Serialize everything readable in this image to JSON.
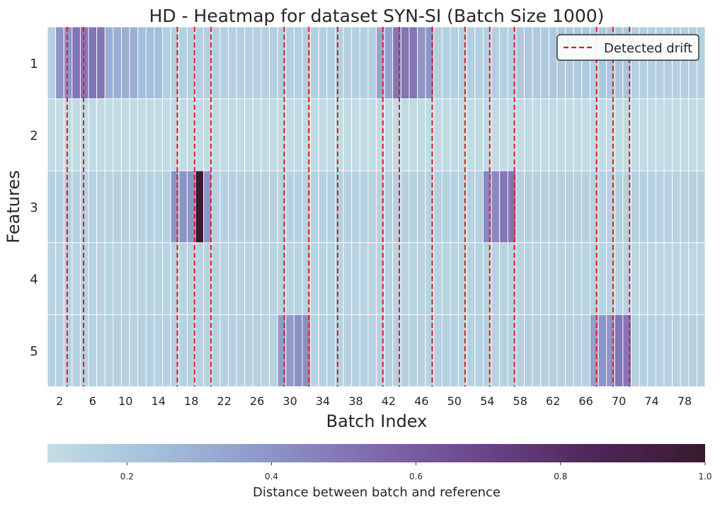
{
  "chart_data": {
    "type": "heatmap",
    "title": "HD - Heatmap for dataset SYN-SI (Batch Size 1000)",
    "xlabel": "Batch Index",
    "ylabel": "Features",
    "y_categories": [
      "1",
      "2",
      "3",
      "4",
      "5"
    ],
    "x_start": 1,
    "x_end": 80,
    "x_tick_labels": [
      "2",
      "6",
      "10",
      "14",
      "18",
      "22",
      "26",
      "30",
      "34",
      "38",
      "42",
      "46",
      "50",
      "54",
      "58",
      "62",
      "66",
      "70",
      "74",
      "78"
    ],
    "colorbar": {
      "label": "Distance between batch and reference",
      "min": 0.09,
      "max": 1.0,
      "ticks": [
        "0.2",
        "0.4",
        "0.6",
        "0.8",
        "1.0"
      ],
      "colors": [
        "#c2dde4",
        "#a3bfdb",
        "#8e96c9",
        "#7f69ac",
        "#6b4489",
        "#4e2659",
        "#3a1a30"
      ]
    },
    "baseline_values": [
      0.16,
      0.1,
      0.15,
      0.14,
      0.15
    ],
    "segments": [
      {
        "feature": "1",
        "from": 2,
        "to": 3,
        "value": 0.4
      },
      {
        "feature": "1",
        "from": 4,
        "to": 7,
        "value": 0.5
      },
      {
        "feature": "1",
        "from": 8,
        "to": 11,
        "value": 0.3
      },
      {
        "feature": "1",
        "from": 12,
        "to": 14,
        "value": 0.24
      },
      {
        "feature": "1",
        "from": 41,
        "to": 42,
        "value": 0.34
      },
      {
        "feature": "1",
        "from": 43,
        "to": 45,
        "value": 0.5
      },
      {
        "feature": "1",
        "from": 46,
        "to": 47,
        "value": 0.4
      },
      {
        "feature": "1",
        "from": 58,
        "to": 66,
        "value": 0.19
      },
      {
        "feature": "1",
        "from": 68,
        "to": 71,
        "value": 0.2
      },
      {
        "feature": "3",
        "from": 16,
        "to": 18,
        "value": 0.4
      },
      {
        "feature": "3",
        "from": 19,
        "to": 19,
        "value": 1.0
      },
      {
        "feature": "3",
        "from": 20,
        "to": 20,
        "value": 0.4
      },
      {
        "feature": "3",
        "from": 54,
        "to": 55,
        "value": 0.44
      },
      {
        "feature": "3",
        "from": 56,
        "to": 57,
        "value": 0.5
      },
      {
        "feature": "4",
        "from": 72,
        "to": 80,
        "value": 0.12
      },
      {
        "feature": "5",
        "from": 29,
        "to": 30,
        "value": 0.38
      },
      {
        "feature": "5",
        "from": 31,
        "to": 32,
        "value": 0.42
      },
      {
        "feature": "5",
        "from": 67,
        "to": 67,
        "value": 0.36
      },
      {
        "feature": "5",
        "from": 68,
        "to": 69,
        "value": 0.4
      },
      {
        "feature": "5",
        "from": 70,
        "to": 71,
        "value": 0.5
      }
    ],
    "drift_lines": [
      2.9,
      4.9,
      16.3,
      18.4,
      20.4,
      29.3,
      32.3,
      35.8,
      41.3,
      43.3,
      47.3,
      51.3,
      54.3,
      57.3,
      67.3,
      69.3,
      71.3
    ],
    "drift_color": "#e41a1c",
    "legend": {
      "label": "Detected drift",
      "position": "top-right"
    }
  }
}
